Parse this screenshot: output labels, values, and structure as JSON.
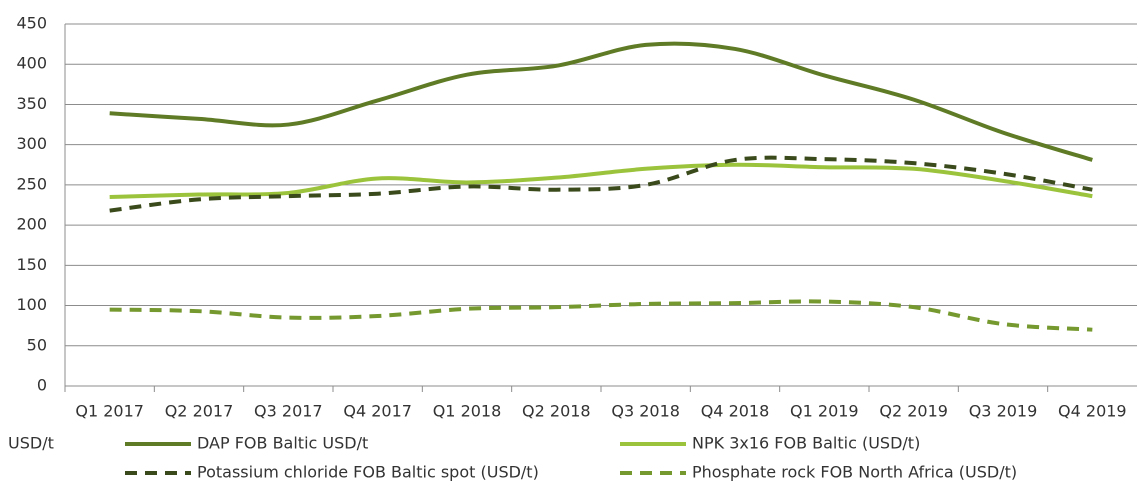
{
  "chart_data": {
    "type": "line",
    "unit_label": "USD/t",
    "categories": [
      "Q1 2017",
      "Q2 2017",
      "Q3 2017",
      "Q4 2017",
      "Q1 2018",
      "Q2 2018",
      "Q3 2018",
      "Q4 2018",
      "Q1 2019",
      "Q2 2019",
      "Q3 2019",
      "Q4 2019"
    ],
    "series": [
      {
        "name": "DAP FOB Baltic USD/t",
        "color": "#5f7b26",
        "line_style": "solid",
        "values": [
          339,
          332,
          325,
          355,
          387,
          398,
          424,
          419,
          386,
          356,
          315,
          281
        ]
      },
      {
        "name": "NPK 3x16 FOB Baltic (USD/t)",
        "color": "#9cc33c",
        "line_style": "solid",
        "values": [
          235,
          238,
          240,
          258,
          253,
          259,
          270,
          275,
          272,
          270,
          255,
          236
        ]
      },
      {
        "name": "Potassium chloride FOB Baltic spot (USD/t)",
        "color": "#3a4a1b",
        "line_style": "dashed",
        "values": [
          218,
          232,
          236,
          239,
          248,
          244,
          250,
          281,
          282,
          277,
          264,
          244
        ]
      },
      {
        "name": "Phosphate rock FOB North Africa (USD/t)",
        "color": "#76992f",
        "line_style": "dashed",
        "values": [
          95,
          93,
          85,
          87,
          96,
          98,
          102,
          103,
          105,
          98,
          77,
          70
        ]
      }
    ],
    "ylim": [
      0,
      450
    ],
    "yticks": [
      0,
      50,
      100,
      150,
      200,
      250,
      300,
      350,
      400,
      450
    ],
    "grid": true
  }
}
